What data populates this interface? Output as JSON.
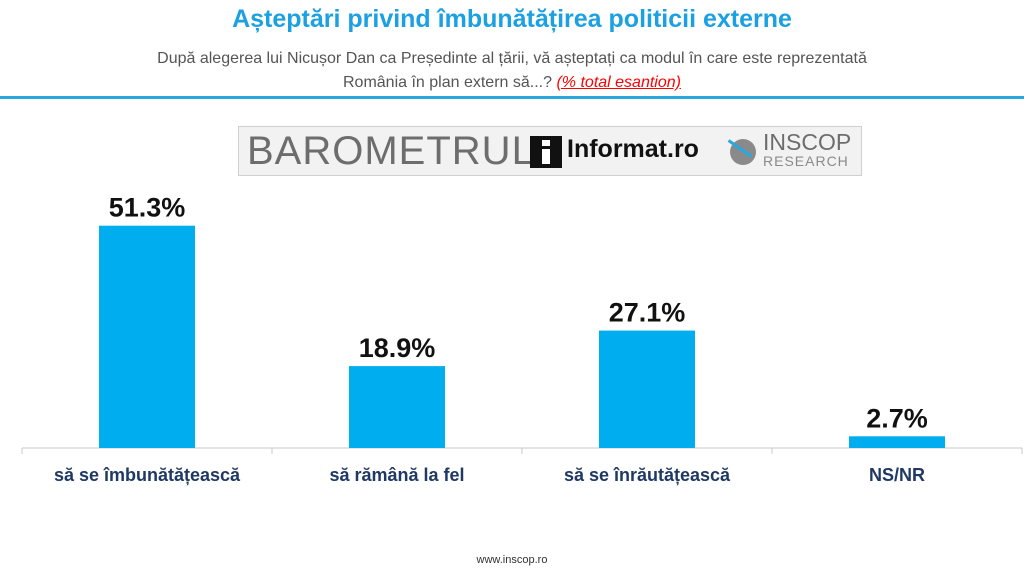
{
  "header": {
    "title": "Așteptări privind îmbunătățirea politicii externe",
    "subtitle_line1": "După alegerea lui Nicușor Dan ca Președinte al țării, vă așteptați ca modul în care este reprezentată",
    "subtitle_line2": "România în plan extern să...?",
    "subtitle_note": "(% total esantion)"
  },
  "banner": {
    "barometru": "BAROMETRUL",
    "informat": "Informat.ro",
    "inscop": "INSCOP",
    "research": "RESEARCH"
  },
  "footer": {
    "website": "www.inscop.ro"
  },
  "colors": {
    "title": "#1ba1e2",
    "bar": "#00aeef",
    "rule": "#29a8df",
    "note": "#ff0000",
    "category_text": "#1f3864",
    "value_text": "#111111",
    "axis": "#c8c8c8"
  },
  "chart_data": {
    "type": "bar",
    "title": "Așteptări privind îmbunătățirea politicii externe",
    "categories": [
      "să se îmbunătățească",
      "să rămână la fel",
      "să se înrăutățească",
      "NS/NR"
    ],
    "values": [
      51.3,
      18.9,
      27.1,
      2.7
    ],
    "value_labels": [
      "51.3%",
      "18.9%",
      "27.1%",
      "2.7%"
    ],
    "ylim": [
      0,
      60
    ],
    "grid": false,
    "legend": "none"
  }
}
